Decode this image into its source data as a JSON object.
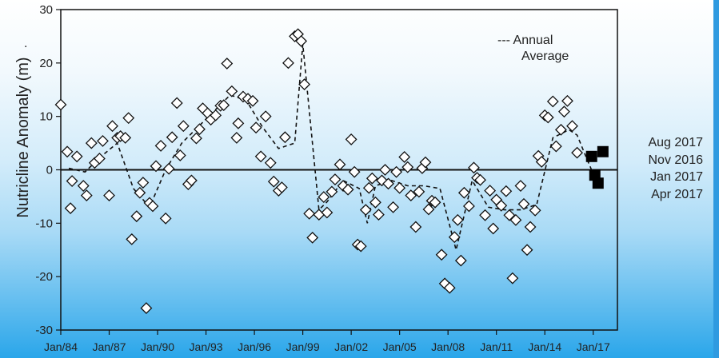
{
  "chart_data": {
    "type": "scatter",
    "ylabel": "Nutricline Anomaly (m)",
    "ylabel_mark": ".",
    "ylim": [
      -30,
      30
    ],
    "y_ticks": [
      -30,
      -20,
      -10,
      0,
      10,
      20,
      30
    ],
    "x_tick_labels": [
      "Jan/84",
      "Jan/87",
      "Jan/90",
      "Jan/93",
      "Jan/96",
      "Jan/99",
      "Jan/02",
      "Jan/05",
      "Jan/08",
      "Jan/11",
      "Jan/14",
      "Jan/17"
    ],
    "xlim": [
      1984.0,
      2018.5
    ],
    "legend": {
      "line1": "--- Annual",
      "line2": "Average",
      "placement": "top-right"
    },
    "recent_labels": [
      "Aug 2017",
      "Nov 2016",
      "Jan 2017",
      "Apr 2017"
    ],
    "series": [
      {
        "marker": "open-diamond",
        "points": [
          [
            1984.0,
            12.2
          ],
          [
            1984.4,
            3.4
          ],
          [
            1984.6,
            -7.2
          ],
          [
            1984.7,
            -2.1
          ],
          [
            1985.0,
            2.5
          ],
          [
            1985.4,
            -3.0
          ],
          [
            1985.6,
            -4.8
          ],
          [
            1985.9,
            5.0
          ],
          [
            1986.1,
            1.3
          ],
          [
            1986.4,
            2.1
          ],
          [
            1986.6,
            5.4
          ],
          [
            1987.0,
            -4.8
          ],
          [
            1987.2,
            8.2
          ],
          [
            1987.5,
            6.0
          ],
          [
            1987.7,
            6.3
          ],
          [
            1988.0,
            6.0
          ],
          [
            1988.2,
            9.7
          ],
          [
            1988.4,
            -13.0
          ],
          [
            1988.7,
            -8.7
          ],
          [
            1988.9,
            -4.3
          ],
          [
            1989.1,
            -2.4
          ],
          [
            1989.3,
            -25.9
          ],
          [
            1989.5,
            -6.2
          ],
          [
            1989.7,
            -6.8
          ],
          [
            1989.9,
            0.7
          ],
          [
            1990.2,
            4.5
          ],
          [
            1990.5,
            -9.1
          ],
          [
            1990.7,
            0.2
          ],
          [
            1990.9,
            6.1
          ],
          [
            1991.2,
            12.5
          ],
          [
            1991.4,
            2.7
          ],
          [
            1991.6,
            8.2
          ],
          [
            1991.9,
            -2.7
          ],
          [
            1992.1,
            -2.0
          ],
          [
            1992.4,
            5.9
          ],
          [
            1992.6,
            7.6
          ],
          [
            1992.8,
            11.5
          ],
          [
            1993.1,
            10.6
          ],
          [
            1993.3,
            9.4
          ],
          [
            1993.6,
            10.2
          ],
          [
            1993.9,
            12.0
          ],
          [
            1994.1,
            12.1
          ],
          [
            1994.3,
            19.9
          ],
          [
            1994.6,
            14.7
          ],
          [
            1994.9,
            6.0
          ],
          [
            1995.0,
            8.7
          ],
          [
            1995.3,
            13.7
          ],
          [
            1995.6,
            13.3
          ],
          [
            1995.9,
            12.9
          ],
          [
            1996.1,
            7.9
          ],
          [
            1996.4,
            2.5
          ],
          [
            1996.7,
            10.0
          ],
          [
            1997.0,
            1.3
          ],
          [
            1997.2,
            -2.2
          ],
          [
            1997.5,
            -3.9
          ],
          [
            1997.7,
            -3.3
          ],
          [
            1997.9,
            6.1
          ],
          [
            1998.1,
            20.0
          ],
          [
            1998.5,
            25.0
          ],
          [
            1998.7,
            25.4
          ],
          [
            1998.9,
            24.1
          ],
          [
            1999.1,
            16.0
          ],
          [
            1999.4,
            -8.2
          ],
          [
            1999.6,
            -12.7
          ],
          [
            2000.0,
            -8.4
          ],
          [
            2000.3,
            -5.1
          ],
          [
            2000.5,
            -8.0
          ],
          [
            2000.8,
            -4.1
          ],
          [
            2001.0,
            -1.8
          ],
          [
            2001.3,
            1.0
          ],
          [
            2001.5,
            -3.0
          ],
          [
            2001.8,
            -3.7
          ],
          [
            2002.0,
            5.7
          ],
          [
            2002.2,
            -0.4
          ],
          [
            2002.4,
            -14.0
          ],
          [
            2002.6,
            -14.3
          ],
          [
            2002.9,
            -7.5
          ],
          [
            2003.1,
            -3.4
          ],
          [
            2003.3,
            -1.6
          ],
          [
            2003.5,
            -6.1
          ],
          [
            2003.7,
            -8.4
          ],
          [
            2003.9,
            -2.0
          ],
          [
            2004.1,
            0.0
          ],
          [
            2004.3,
            -2.6
          ],
          [
            2004.6,
            -7.0
          ],
          [
            2004.8,
            -0.4
          ],
          [
            2005.0,
            -3.4
          ],
          [
            2005.3,
            2.4
          ],
          [
            2005.5,
            0.5
          ],
          [
            2005.7,
            -4.8
          ],
          [
            2006.0,
            -10.7
          ],
          [
            2006.2,
            -4.1
          ],
          [
            2006.4,
            0.3
          ],
          [
            2006.6,
            1.4
          ],
          [
            2006.8,
            -7.4
          ],
          [
            2007.0,
            -5.8
          ],
          [
            2007.2,
            -6.1
          ],
          [
            2007.6,
            -15.9
          ],
          [
            2007.8,
            -21.3
          ],
          [
            2008.1,
            -22.1
          ],
          [
            2008.4,
            -12.6
          ],
          [
            2008.6,
            -9.4
          ],
          [
            2008.8,
            -17.0
          ],
          [
            2009.0,
            -4.3
          ],
          [
            2009.3,
            -6.8
          ],
          [
            2009.6,
            0.4
          ],
          [
            2009.8,
            -1.5
          ],
          [
            2010.0,
            -1.9
          ],
          [
            2010.3,
            -8.5
          ],
          [
            2010.6,
            -3.9
          ],
          [
            2010.8,
            -11.0
          ],
          [
            2011.0,
            -5.6
          ],
          [
            2011.3,
            -6.7
          ],
          [
            2011.6,
            -4.0
          ],
          [
            2011.8,
            -8.5
          ],
          [
            2012.0,
            -20.3
          ],
          [
            2012.2,
            -9.4
          ],
          [
            2012.5,
            -3.0
          ],
          [
            2012.7,
            -6.4
          ],
          [
            2012.9,
            -15.0
          ],
          [
            2013.1,
            -10.7
          ],
          [
            2013.4,
            -7.6
          ],
          [
            2013.6,
            2.6
          ],
          [
            2013.8,
            1.5
          ],
          [
            2014.0,
            10.2
          ],
          [
            2014.2,
            9.8
          ],
          [
            2014.5,
            12.8
          ],
          [
            2014.7,
            4.4
          ],
          [
            2015.0,
            7.5
          ],
          [
            2015.2,
            10.9
          ],
          [
            2015.4,
            12.9
          ],
          [
            2015.7,
            8.2
          ],
          [
            2016.0,
            3.2
          ]
        ]
      },
      {
        "marker": "filled-square",
        "points": [
          [
            2016.9,
            2.5
          ],
          [
            2017.1,
            -1.0
          ],
          [
            2017.3,
            -2.5
          ],
          [
            2017.6,
            3.4
          ]
        ]
      },
      {
        "name": "Annual Average",
        "marker": "dashed-line",
        "points": [
          [
            1984.5,
            0.3
          ],
          [
            1985.5,
            -0.4
          ],
          [
            1986.5,
            2.5
          ],
          [
            1987.5,
            5.0
          ],
          [
            1988.5,
            -3.5
          ],
          [
            1989.5,
            -7.0
          ],
          [
            1990.5,
            0.0
          ],
          [
            1991.5,
            5.0
          ],
          [
            1992.5,
            8.0
          ],
          [
            1993.5,
            11.0
          ],
          [
            1994.5,
            14.0
          ],
          [
            1995.5,
            13.0
          ],
          [
            1996.5,
            8.0
          ],
          [
            1997.5,
            4.0
          ],
          [
            1998.5,
            5.0
          ],
          [
            1999.0,
            23.5
          ],
          [
            1999.5,
            8.0
          ],
          [
            2000.0,
            -7.5
          ],
          [
            2000.5,
            -6.0
          ],
          [
            2001.5,
            -2.0
          ],
          [
            2002.5,
            -3.5
          ],
          [
            2003.0,
            -10.0
          ],
          [
            2003.5,
            -3.0
          ],
          [
            2004.5,
            -2.0
          ],
          [
            2005.5,
            -3.0
          ],
          [
            2006.5,
            -3.0
          ],
          [
            2007.5,
            -3.5
          ],
          [
            2008.5,
            -15.0
          ],
          [
            2009.5,
            -2.0
          ],
          [
            2010.5,
            -7.0
          ],
          [
            2011.5,
            -7.5
          ],
          [
            2012.5,
            -7.5
          ],
          [
            2013.5,
            -6.5
          ],
          [
            2014.5,
            6.0
          ],
          [
            2015.5,
            7.5
          ],
          [
            2016.0,
            6.5
          ],
          [
            2016.5,
            2.8
          ],
          [
            2017.1,
            -1.5
          ]
        ]
      }
    ]
  }
}
